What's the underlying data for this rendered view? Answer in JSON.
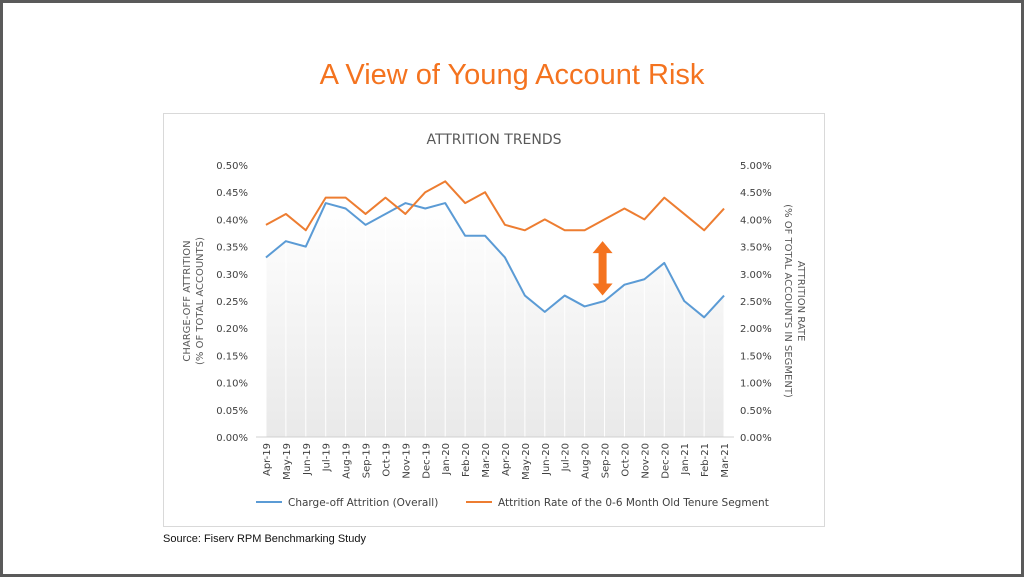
{
  "slide": {
    "title": "A View of Young Account Risk",
    "source": "Source: Fiserv RPM Benchmarking Study"
  },
  "colors": {
    "title": "#f4731f",
    "series_blue": "#5b9bd5",
    "series_orange": "#ed7d31",
    "arrow": "#f4731f"
  },
  "chart_data": {
    "type": "line",
    "title": "ATTRITION TRENDS",
    "ylabel_left": [
      "CHARGE-OFF ATTRITION",
      "(% OF TOTAL ACCOUNTS)"
    ],
    "ylabel_right": [
      "ATTRITION RATE",
      "(% OF TOTAL ACCOUNTS IN SEGMENT)"
    ],
    "categories": [
      "Apr-19",
      "May-19",
      "Jun-19",
      "Jul-19",
      "Aug-19",
      "Sep-19",
      "Oct-19",
      "Nov-19",
      "Dec-19",
      "Jan-20",
      "Feb-20",
      "Mar-20",
      "Apr-20",
      "May-20",
      "Jun-20",
      "Jul-20",
      "Aug-20",
      "Sep-20",
      "Oct-20",
      "Nov-20",
      "Dec-20",
      "Jan-21",
      "Feb-21",
      "Mar-21"
    ],
    "ylim_left": [
      0,
      0.5
    ],
    "ylim_right": [
      0,
      5
    ],
    "yticks_left": [
      "0.00%",
      "0.05%",
      "0.10%",
      "0.15%",
      "0.20%",
      "0.25%",
      "0.30%",
      "0.35%",
      "0.40%",
      "0.45%",
      "0.50%"
    ],
    "yticks_right": [
      "0.00%",
      "0.50%",
      "1.00%",
      "1.50%",
      "2.00%",
      "2.50%",
      "3.00%",
      "3.50%",
      "4.00%",
      "4.50%",
      "5.00%"
    ],
    "legend_position": "bottom",
    "series": [
      {
        "name": "Charge-off Attrition (Overall)",
        "axis": "left",
        "values": [
          0.33,
          0.36,
          0.35,
          0.43,
          0.42,
          0.39,
          0.41,
          0.43,
          0.42,
          0.43,
          0.37,
          0.37,
          0.33,
          0.26,
          0.23,
          0.26,
          0.24,
          0.25,
          0.28,
          0.29,
          0.32,
          0.25,
          0.22,
          0.26
        ]
      },
      {
        "name": "Attrition Rate of the 0-6 Month Old Tenure Segment",
        "axis": "right",
        "values": [
          3.9,
          4.1,
          3.8,
          4.4,
          4.4,
          4.1,
          4.4,
          4.1,
          4.5,
          4.7,
          4.3,
          4.5,
          3.9,
          3.8,
          4.0,
          3.8,
          3.8,
          4.0,
          4.2,
          4.0,
          4.4,
          4.1,
          3.8,
          4.2
        ]
      }
    ],
    "annotation": {
      "type": "double-arrow",
      "x_between": [
        "Aug-20",
        "Sep-20"
      ],
      "y_from": 0.26,
      "y_to": 0.36
    }
  }
}
